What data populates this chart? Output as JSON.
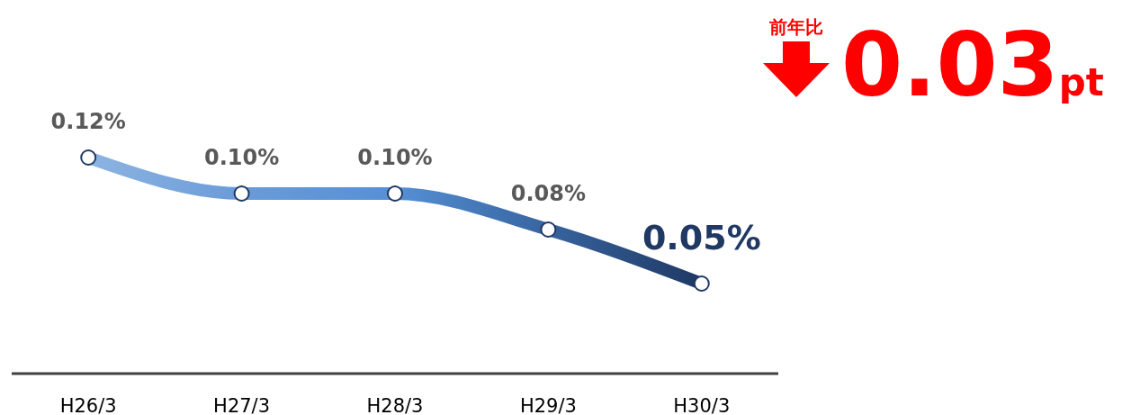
{
  "chart_data": {
    "type": "line",
    "categories": [
      "H26/3",
      "H27/3",
      "H28/3",
      "H29/3",
      "H30/3"
    ],
    "series": [
      {
        "values": [
          0.12,
          0.1,
          0.1,
          0.08,
          0.05
        ],
        "color": "#1f3864",
        "colors": [
          "#8db4e2",
          "#6a9bd8",
          "#5590d5",
          "#37649f",
          "#1f3864"
        ],
        "value_labels": [
          "0.12%",
          "0.10%",
          "0.10%",
          "0.08%",
          "0.05%"
        ]
      }
    ],
    "marker": "circle",
    "tick_labels": "x",
    "annotations": [
      "前年比",
      "0.03pt"
    ]
  }
}
